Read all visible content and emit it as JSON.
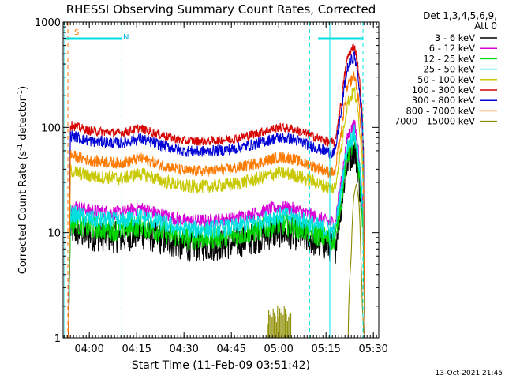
{
  "chart_data": {
    "type": "line",
    "title": "RHESSI Observing Summary Count Rates, Corrected",
    "xlabel": "Start Time (11-Feb-09 03:51:42)",
    "ylabel": "Corrected Count Rate (s",
    "ylabel_sup1": "-1",
    "ylabel_mid": " detector",
    "ylabel_sup2": "-1",
    "ylabel_end": ")",
    "y_scale": "log",
    "ylim": [
      1,
      1000
    ],
    "xlim_min": [
      231.7,
      331.7
    ],
    "x_ticks": [
      {
        "min": 240,
        "label": "04:00"
      },
      {
        "min": 255,
        "label": "04:15"
      },
      {
        "min": 270,
        "label": "04:30"
      },
      {
        "min": 285,
        "label": "04:45"
      },
      {
        "min": 300,
        "label": "05:00"
      },
      {
        "min": 315,
        "label": "05:15"
      },
      {
        "min": 330,
        "label": "05:30"
      }
    ],
    "y_ticks": [
      {
        "v": 1,
        "label": "1"
      },
      {
        "v": 10,
        "label": "10"
      },
      {
        "v": 100,
        "label": "100"
      },
      {
        "v": 1000,
        "label": "1000"
      }
    ],
    "legend_header_1": "Det 1,3,4,5,6,9,",
    "legend_header_2": "Att 0",
    "legend_position": "top-right, outside plot",
    "flag_labels": {
      "saa": "S",
      "night": "N"
    },
    "timestamp": "13-Oct-2021 21:45",
    "markers": {
      "orange_dash_min": 233.2,
      "cyan_dash_min": [
        250.3,
        309.8,
        326.7
      ],
      "cyan_solid_min": [
        232.2,
        316.2
      ],
      "night_bars": [
        [
          232.5,
          250.3
        ],
        [
          312.5,
          326.7
        ]
      ]
    },
    "shape": {
      "x_min": [
        234.0,
        240.0,
        250.0,
        256.0,
        262.0,
        270.0,
        278.0,
        286.0,
        292.0,
        300.0,
        304.0,
        310.0,
        316.0,
        318.0,
        320.0,
        322.0,
        324.0,
        326.0,
        327.0
      ],
      "factor": [
        1.05,
        0.93,
        0.88,
        0.98,
        0.86,
        0.74,
        0.74,
        0.78,
        0.86,
        1.0,
        0.97,
        0.84,
        0.72,
        0.72,
        1.8,
        4.8,
        6.0,
        2.0,
        0.4
      ]
    },
    "series": [
      {
        "name": "3 - 6 keV",
        "color": "#000000",
        "base": 10.2,
        "noise": 0.07
      },
      {
        "name": "6 - 12 keV",
        "color": "#d600d6",
        "base": 17.5,
        "noise": 0.03
      },
      {
        "name": "12 - 25 keV",
        "color": "#00d600",
        "base": 12.0,
        "noise": 0.05
      },
      {
        "name": "25 - 50 keV",
        "color": "#00e0e0",
        "base": 14.5,
        "noise": 0.04
      },
      {
        "name": "50 - 100 keV",
        "color": "#c8c800",
        "base": 37.0,
        "noise": 0.03
      },
      {
        "name": "100 - 300 keV",
        "color": "#d60000",
        "base": 100.0,
        "noise": 0.02
      },
      {
        "name": "300 - 800 keV",
        "color": "#0000d6",
        "base": 80.0,
        "noise": 0.025
      },
      {
        "name": "800 - 7000 keV",
        "color": "#ff7a00",
        "base": 52.0,
        "noise": 0.025
      },
      {
        "name": "7000 - 15000 keV",
        "color": "#8c8c00",
        "base": 1,
        "noise": 0
      }
    ],
    "olive_curve": {
      "min": [
        322.0,
        323.0,
        323.8,
        324.6,
        325.4,
        326.0,
        326.5,
        327.0
      ],
      "val": [
        1.0,
        6.0,
        22.0,
        29.0,
        20.0,
        6.0,
        2.0,
        1.0
      ]
    }
  }
}
